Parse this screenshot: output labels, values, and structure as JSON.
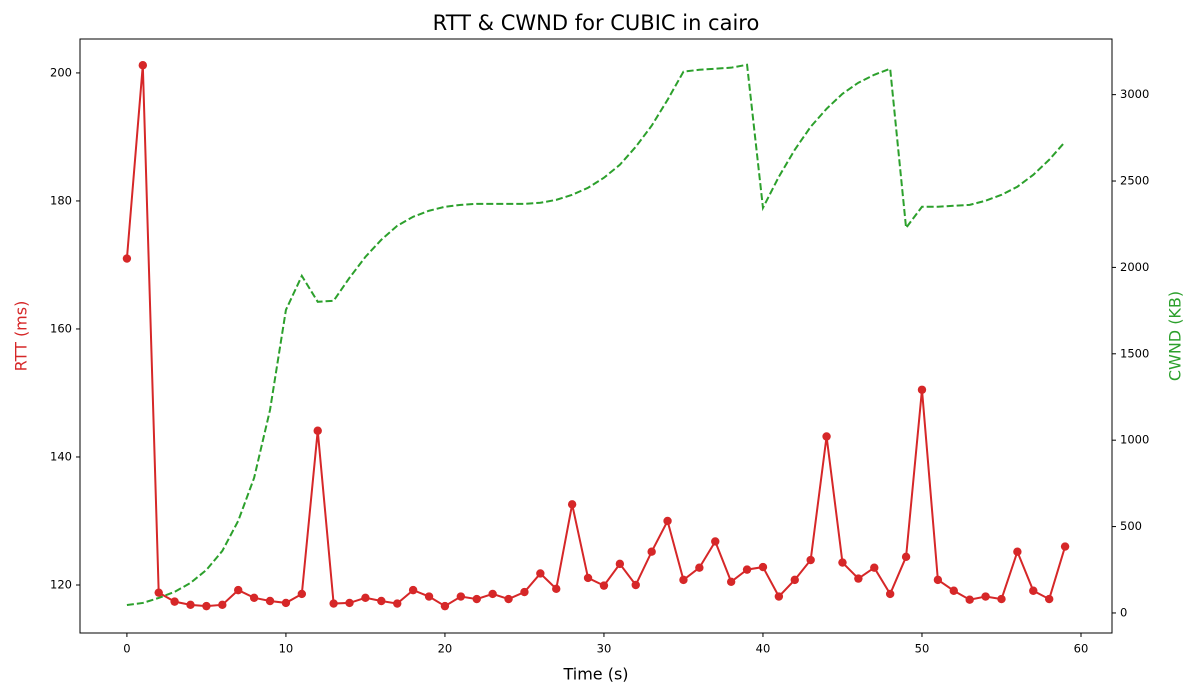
{
  "chart_data": {
    "type": "line",
    "title": "RTT & CWND for CUBIC in cairo",
    "x_label": "Time (s)",
    "y_label": "RTT (ms)",
    "y2_label": "CWND (KB)",
    "x": [
      0,
      1,
      2,
      3,
      4,
      5,
      6,
      7,
      8,
      9,
      10,
      11,
      12,
      13,
      14,
      15,
      16,
      17,
      18,
      19,
      20,
      21,
      22,
      23,
      24,
      25,
      26,
      27,
      28,
      29,
      30,
      31,
      32,
      33,
      34,
      35,
      36,
      37,
      38,
      39,
      40,
      41,
      42,
      43,
      44,
      45,
      46,
      47,
      48,
      49,
      50,
      51,
      52,
      53,
      54,
      55,
      56,
      57,
      58,
      59
    ],
    "series": [
      {
        "color": "#d62728",
        "axis": "y",
        "linestyle": "solid",
        "marker": "circle",
        "values": [
          171.0,
          201.2,
          118.8,
          117.4,
          116.9,
          116.7,
          116.9,
          119.2,
          118.0,
          117.5,
          117.2,
          118.6,
          144.1,
          117.1,
          117.2,
          118.0,
          117.5,
          117.1,
          119.2,
          118.2,
          116.7,
          118.2,
          117.8,
          118.6,
          117.8,
          118.9,
          121.8,
          119.4,
          132.6,
          121.1,
          119.9,
          123.3,
          120.0,
          125.2,
          130.0,
          120.8,
          122.7,
          126.8,
          120.5,
          122.4,
          122.8,
          118.2,
          120.8,
          123.9,
          143.2,
          123.5,
          121.0,
          122.7,
          118.6,
          124.4,
          150.5,
          120.8,
          119.1,
          117.7,
          118.2,
          117.8,
          125.2,
          119.1,
          117.8,
          126.0
        ]
      },
      {
        "color": "#2ca02c",
        "axis": "y2",
        "linestyle": "dashed",
        "marker": "none",
        "values": [
          46,
          58,
          87,
          122,
          174,
          249,
          359,
          533,
          782,
          1175,
          1754,
          1951,
          1801,
          1807,
          1940,
          2061,
          2160,
          2241,
          2293,
          2328,
          2351,
          2362,
          2368,
          2368,
          2368,
          2368,
          2374,
          2391,
          2420,
          2461,
          2519,
          2594,
          2698,
          2820,
          2970,
          3133,
          3144,
          3150,
          3156,
          3173,
          2345,
          2525,
          2681,
          2814,
          2918,
          3005,
          3069,
          3115,
          3150,
          2229,
          2351,
          2351,
          2357,
          2362,
          2386,
          2420,
          2467,
          2536,
          2623,
          2727
        ]
      }
    ],
    "xlim": [
      -2.95,
      61.95
    ],
    "xticks": [
      0,
      10,
      20,
      30,
      40,
      50,
      60
    ],
    "ylim": [
      112.5,
      205.3
    ],
    "yticks": [
      120,
      140,
      160,
      180,
      200
    ],
    "y2lim": [
      -116,
      3322
    ],
    "y2ticks": [
      0,
      500,
      1000,
      1500,
      2000,
      2500,
      3000
    ],
    "grid": false
  }
}
